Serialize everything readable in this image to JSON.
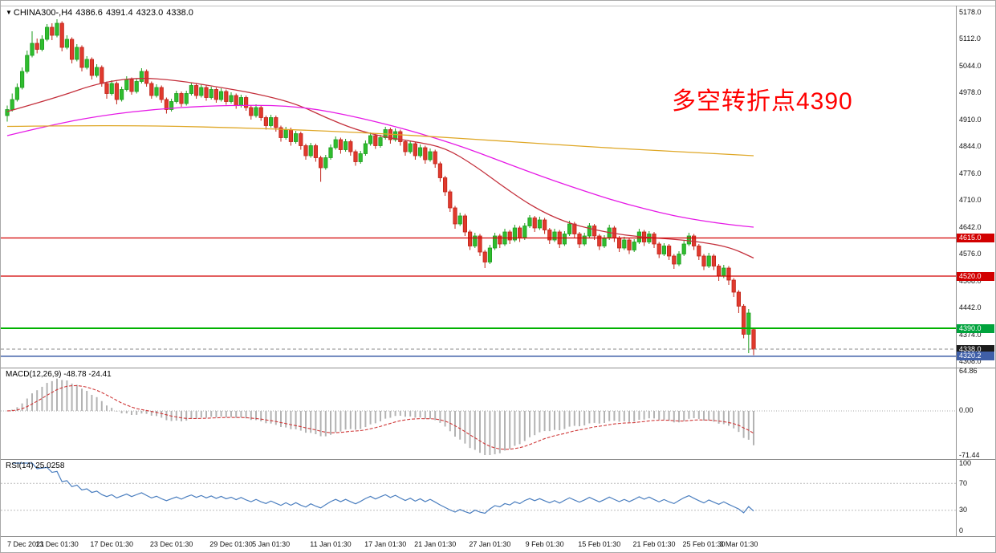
{
  "title": {
    "icon": "▼",
    "symbol": "CHINA300-,H4",
    "open": "4386.6",
    "high": "4391.4",
    "low": "4323.0",
    "close": "4338.0"
  },
  "annotation": {
    "text": "多空转折点4390",
    "color": "#ff0000"
  },
  "macd_panel": {
    "label": "MACD(12,26,9) -48.78 -24.41",
    "ticks": [
      {
        "v": 64.86,
        "t": "64.86"
      },
      {
        "v": 0,
        "t": "0.00"
      },
      {
        "v": -71.44,
        "t": "-71.44"
      }
    ],
    "range": {
      "min": -71.44,
      "max": 64.86
    }
  },
  "rsi_panel": {
    "label": "RSI(14) 25.0258",
    "ticks": [
      {
        "v": 100,
        "t": "100"
      },
      {
        "v": 70,
        "t": "70"
      },
      {
        "v": 30,
        "t": "30"
      },
      {
        "v": 0,
        "t": "0"
      }
    ],
    "levels": [
      70,
      30
    ],
    "range": {
      "min": 0,
      "max": 100
    }
  },
  "price_axis": {
    "ticks": [
      {
        "v": 5178,
        "t": "5178.0"
      },
      {
        "v": 5112,
        "t": "5112.0"
      },
      {
        "v": 5044,
        "t": "5044.0"
      },
      {
        "v": 4978,
        "t": "4978.0"
      },
      {
        "v": 4910,
        "t": "4910.0"
      },
      {
        "v": 4844,
        "t": "4844.0"
      },
      {
        "v": 4776,
        "t": "4776.0"
      },
      {
        "v": 4710,
        "t": "4710.0"
      },
      {
        "v": 4642,
        "t": "4642.0"
      },
      {
        "v": 4576,
        "t": "4576.0"
      },
      {
        "v": 4508,
        "t": "4508.0"
      },
      {
        "v": 4442,
        "t": "4442.0"
      },
      {
        "v": 4374,
        "t": "4374.0"
      },
      {
        "v": 4308,
        "t": "4308.0"
      }
    ],
    "badges": [
      {
        "v": 4615,
        "t": "4615.0",
        "bg": "#d20000"
      },
      {
        "v": 4520,
        "t": "4520.0",
        "bg": "#d20000"
      },
      {
        "v": 4390,
        "t": "4390.0",
        "bg": "#00a33c"
      },
      {
        "v": 4338,
        "t": "4338.0",
        "bg": "#1b1b1b"
      },
      {
        "v": 4320.2,
        "t": "4320.2",
        "bg": "#3f5fa8"
      }
    ]
  },
  "time_axis": [
    {
      "t": "7 Dec 2021",
      "bar": 0
    },
    {
      "t": "13 Dec 01:30",
      "bar": 10
    },
    {
      "t": "17 Dec 01:30",
      "bar": 21
    },
    {
      "t": "23 Dec 01:30",
      "bar": 33
    },
    {
      "t": "29 Dec 01:30",
      "bar": 45
    },
    {
      "t": "5 Jan 01:30",
      "bar": 53
    },
    {
      "t": "11 Jan 01:30",
      "bar": 65
    },
    {
      "t": "17 Jan 01:30",
      "bar": 76
    },
    {
      "t": "21 Jan 01:30",
      "bar": 86
    },
    {
      "t": "27 Jan 01:30",
      "bar": 97
    },
    {
      "t": "9 Feb 01:30",
      "bar": 108
    },
    {
      "t": "15 Feb 01:30",
      "bar": 119
    },
    {
      "t": "21 Feb 01:30",
      "bar": 130
    },
    {
      "t": "25 Feb 01:30",
      "bar": 140
    },
    {
      "t": "3 Mar 01:30",
      "bar": 147
    }
  ],
  "colors": {
    "up": "#1f9e1f",
    "up_fill": "#2fbd2f",
    "down": "#c02318",
    "down_fill": "#e03a2e",
    "ma_fast": "#c4303c",
    "ma_mid": "#e61ae6",
    "ma_slow": "#dfa726",
    "macd_hist": "#b3b3b3",
    "macd_signal": "#cf3838",
    "rsi_line": "#4a7ebf",
    "divider": "#8f8f8f",
    "annotation": "#ff0000"
  },
  "chart_data": {
    "type": "candlestick",
    "symbol": "CHINA300-",
    "timeframe": "H4",
    "current_bar": {
      "open": 4386.6,
      "high": 4391.4,
      "low": 4323.0,
      "close": 4338.0
    },
    "y_range": {
      "min": 4308,
      "max": 5178
    },
    "candles": [
      [
        4920,
        4945,
        4905,
        4935
      ],
      [
        4935,
        4975,
        4930,
        4960
      ],
      [
        4960,
        5000,
        4955,
        4990
      ],
      [
        4990,
        5040,
        4985,
        5030
      ],
      [
        5030,
        5082,
        5025,
        5070
      ],
      [
        5070,
        5130,
        5065,
        5100
      ],
      [
        5100,
        5112,
        5075,
        5085
      ],
      [
        5085,
        5120,
        5080,
        5110
      ],
      [
        5110,
        5148,
        5105,
        5140
      ],
      [
        5140,
        5150,
        5108,
        5120
      ],
      [
        5120,
        5160,
        5115,
        5150
      ],
      [
        5150,
        5155,
        5080,
        5090
      ],
      [
        5090,
        5120,
        5085,
        5110
      ],
      [
        5110,
        5115,
        5050,
        5060
      ],
      [
        5060,
        5098,
        5055,
        5090
      ],
      [
        5090,
        5095,
        5030,
        5040
      ],
      [
        5040,
        5068,
        5035,
        5060
      ],
      [
        5060,
        5065,
        5010,
        5020
      ],
      [
        5020,
        5048,
        5015,
        5040
      ],
      [
        5040,
        5045,
        4992,
        5000
      ],
      [
        5000,
        5005,
        4962,
        4975
      ],
      [
        4975,
        5008,
        4970,
        5000
      ],
      [
        5000,
        5005,
        4948,
        4960
      ],
      [
        4960,
        4992,
        4955,
        4985
      ],
      [
        4985,
        5018,
        4980,
        5010
      ],
      [
        5010,
        5015,
        4972,
        4980
      ],
      [
        4980,
        5012,
        4975,
        5005
      ],
      [
        5005,
        5038,
        5000,
        5030
      ],
      [
        5030,
        5035,
        4992,
        5000
      ],
      [
        5000,
        5005,
        4962,
        4970
      ],
      [
        4970,
        4998,
        4965,
        4990
      ],
      [
        4990,
        4995,
        4952,
        4960
      ],
      [
        4960,
        4965,
        4925,
        4935
      ],
      [
        4935,
        4962,
        4930,
        4955
      ],
      [
        4955,
        4982,
        4950,
        4975
      ],
      [
        4975,
        4980,
        4942,
        4950
      ],
      [
        4950,
        4982,
        4945,
        4975
      ],
      [
        4975,
        5002,
        4970,
        4995
      ],
      [
        4995,
        5000,
        4962,
        4970
      ],
      [
        4970,
        4998,
        4965,
        4990
      ],
      [
        4990,
        4995,
        4957,
        4965
      ],
      [
        4965,
        4992,
        4960,
        4985
      ],
      [
        4985,
        4990,
        4952,
        4960
      ],
      [
        4960,
        4988,
        4955,
        4980
      ],
      [
        4980,
        4985,
        4947,
        4955
      ],
      [
        4955,
        4978,
        4950,
        4970
      ],
      [
        4970,
        4975,
        4937,
        4945
      ],
      [
        4945,
        4972,
        4940,
        4965
      ],
      [
        4965,
        4970,
        4932,
        4940
      ],
      [
        4940,
        4945,
        4910,
        4920
      ],
      [
        4920,
        4948,
        4915,
        4940
      ],
      [
        4940,
        4945,
        4907,
        4915
      ],
      [
        4915,
        4920,
        4885,
        4895
      ],
      [
        4895,
        4922,
        4890,
        4915
      ],
      [
        4915,
        4920,
        4880,
        4890
      ],
      [
        4890,
        4895,
        4855,
        4865
      ],
      [
        4865,
        4892,
        4860,
        4885
      ],
      [
        4885,
        4890,
        4845,
        4855
      ],
      [
        4855,
        4882,
        4850,
        4875
      ],
      [
        4875,
        4880,
        4835,
        4845
      ],
      [
        4845,
        4850,
        4810,
        4820
      ],
      [
        4820,
        4852,
        4815,
        4845
      ],
      [
        4845,
        4850,
        4805,
        4815
      ],
      [
        4815,
        4820,
        4755,
        4790
      ],
      [
        4790,
        4822,
        4785,
        4815
      ],
      [
        4815,
        4848,
        4810,
        4840
      ],
      [
        4840,
        4868,
        4835,
        4860
      ],
      [
        4860,
        4865,
        4825,
        4835
      ],
      [
        4835,
        4862,
        4830,
        4855
      ],
      [
        4855,
        4860,
        4820,
        4830
      ],
      [
        4830,
        4835,
        4795,
        4805
      ],
      [
        4805,
        4832,
        4800,
        4825
      ],
      [
        4825,
        4858,
        4820,
        4850
      ],
      [
        4850,
        4878,
        4845,
        4870
      ],
      [
        4870,
        4875,
        4837,
        4845
      ],
      [
        4845,
        4872,
        4840,
        4865
      ],
      [
        4865,
        4892,
        4860,
        4885
      ],
      [
        4885,
        4890,
        4850,
        4860
      ],
      [
        4860,
        4888,
        4855,
        4880
      ],
      [
        4880,
        4885,
        4845,
        4855
      ],
      [
        4855,
        4860,
        4820,
        4830
      ],
      [
        4830,
        4858,
        4825,
        4850
      ],
      [
        4850,
        4855,
        4810,
        4820
      ],
      [
        4820,
        4848,
        4815,
        4840
      ],
      [
        4840,
        4845,
        4800,
        4810
      ],
      [
        4810,
        4838,
        4805,
        4830
      ],
      [
        4830,
        4835,
        4790,
        4800
      ],
      [
        4800,
        4805,
        4755,
        4765
      ],
      [
        4765,
        4770,
        4720,
        4730
      ],
      [
        4730,
        4735,
        4680,
        4690
      ],
      [
        4690,
        4695,
        4638,
        4650
      ],
      [
        4650,
        4678,
        4645,
        4670
      ],
      [
        4670,
        4675,
        4620,
        4630
      ],
      [
        4630,
        4635,
        4585,
        4595
      ],
      [
        4595,
        4628,
        4590,
        4620
      ],
      [
        4620,
        4625,
        4570,
        4580
      ],
      [
        4580,
        4585,
        4540,
        4555
      ],
      [
        4555,
        4598,
        4550,
        4590
      ],
      [
        4590,
        4628,
        4585,
        4620
      ],
      [
        4620,
        4625,
        4590,
        4600
      ],
      [
        4600,
        4638,
        4595,
        4630
      ],
      [
        4630,
        4635,
        4600,
        4610
      ],
      [
        4610,
        4648,
        4605,
        4640
      ],
      [
        4640,
        4645,
        4605,
        4615
      ],
      [
        4615,
        4652,
        4610,
        4645
      ],
      [
        4645,
        4672,
        4640,
        4665
      ],
      [
        4665,
        4670,
        4630,
        4640
      ],
      [
        4640,
        4668,
        4635,
        4660
      ],
      [
        4660,
        4665,
        4625,
        4635
      ],
      [
        4635,
        4640,
        4600,
        4610
      ],
      [
        4610,
        4638,
        4605,
        4630
      ],
      [
        4630,
        4635,
        4590,
        4600
      ],
      [
        4600,
        4632,
        4595,
        4625
      ],
      [
        4625,
        4658,
        4620,
        4650
      ],
      [
        4650,
        4655,
        4615,
        4625
      ],
      [
        4625,
        4630,
        4590,
        4600
      ],
      [
        4600,
        4628,
        4595,
        4620
      ],
      [
        4620,
        4652,
        4615,
        4645
      ],
      [
        4645,
        4650,
        4610,
        4620
      ],
      [
        4620,
        4625,
        4585,
        4595
      ],
      [
        4595,
        4622,
        4590,
        4615
      ],
      [
        4615,
        4648,
        4610,
        4640
      ],
      [
        4640,
        4645,
        4605,
        4615
      ],
      [
        4615,
        4620,
        4580,
        4590
      ],
      [
        4590,
        4618,
        4585,
        4610
      ],
      [
        4610,
        4615,
        4575,
        4585
      ],
      [
        4585,
        4612,
        4580,
        4605
      ],
      [
        4605,
        4638,
        4600,
        4630
      ],
      [
        4630,
        4635,
        4595,
        4605
      ],
      [
        4605,
        4632,
        4600,
        4625
      ],
      [
        4625,
        4630,
        4590,
        4600
      ],
      [
        4600,
        4605,
        4565,
        4575
      ],
      [
        4575,
        4602,
        4570,
        4595
      ],
      [
        4595,
        4600,
        4560,
        4570
      ],
      [
        4570,
        4575,
        4538,
        4550
      ],
      [
        4550,
        4582,
        4545,
        4575
      ],
      [
        4575,
        4608,
        4570,
        4600
      ],
      [
        4600,
        4628,
        4595,
        4620
      ],
      [
        4620,
        4625,
        4585,
        4595
      ],
      [
        4595,
        4600,
        4560,
        4570
      ],
      [
        4570,
        4575,
        4535,
        4545
      ],
      [
        4545,
        4578,
        4540,
        4570
      ],
      [
        4570,
        4575,
        4535,
        4545
      ],
      [
        4545,
        4550,
        4508,
        4520
      ],
      [
        4520,
        4548,
        4515,
        4540
      ],
      [
        4540,
        4545,
        4498,
        4510
      ],
      [
        4510,
        4515,
        4468,
        4480
      ],
      [
        4480,
        4485,
        4428,
        4445
      ],
      [
        4445,
        4450,
        4365,
        4375
      ],
      [
        4375,
        4438,
        4328,
        4428
      ],
      [
        4386.6,
        4391.4,
        4323,
        4338
      ]
    ],
    "moving_averages": [
      {
        "name": "fast",
        "color": "#c4303c",
        "points": [
          [
            0,
            4930
          ],
          [
            10,
            4965
          ],
          [
            18,
            5000
          ],
          [
            26,
            5015
          ],
          [
            34,
            5008
          ],
          [
            42,
            4992
          ],
          [
            50,
            4975
          ],
          [
            58,
            4950
          ],
          [
            64,
            4915
          ],
          [
            70,
            4885
          ],
          [
            76,
            4866
          ],
          [
            82,
            4855
          ],
          [
            88,
            4840
          ],
          [
            94,
            4795
          ],
          [
            100,
            4740
          ],
          [
            106,
            4690
          ],
          [
            112,
            4655
          ],
          [
            118,
            4635
          ],
          [
            124,
            4622
          ],
          [
            130,
            4615
          ],
          [
            136,
            4610
          ],
          [
            142,
            4600
          ],
          [
            146,
            4588
          ],
          [
            150,
            4565
          ]
        ]
      },
      {
        "name": "mid",
        "color": "#e61ae6",
        "points": [
          [
            0,
            4870
          ],
          [
            10,
            4900
          ],
          [
            20,
            4922
          ],
          [
            30,
            4936
          ],
          [
            40,
            4944
          ],
          [
            50,
            4946
          ],
          [
            56,
            4944
          ],
          [
            62,
            4936
          ],
          [
            68,
            4922
          ],
          [
            74,
            4905
          ],
          [
            80,
            4886
          ],
          [
            86,
            4864
          ],
          [
            92,
            4840
          ],
          [
            98,
            4812
          ],
          [
            104,
            4784
          ],
          [
            110,
            4757
          ],
          [
            116,
            4732
          ],
          [
            122,
            4708
          ],
          [
            128,
            4688
          ],
          [
            134,
            4670
          ],
          [
            140,
            4657
          ],
          [
            146,
            4647
          ],
          [
            150,
            4642
          ]
        ]
      },
      {
        "name": "slow",
        "color": "#dfa726",
        "points": [
          [
            0,
            4893
          ],
          [
            20,
            4896
          ],
          [
            40,
            4892
          ],
          [
            60,
            4884
          ],
          [
            80,
            4872
          ],
          [
            100,
            4856
          ],
          [
            120,
            4840
          ],
          [
            135,
            4830
          ],
          [
            150,
            4820
          ]
        ]
      }
    ],
    "hlines": [
      {
        "price": 4615.0,
        "color": "#d20000",
        "width": 1.2,
        "style": "solid",
        "label": "4615.0"
      },
      {
        "price": 4520.0,
        "color": "#d20000",
        "width": 1.2,
        "style": "solid",
        "label": "4520.0"
      },
      {
        "price": 4390.0,
        "color": "#00b200",
        "width": 2,
        "style": "solid",
        "label": "4390.0"
      },
      {
        "price": 4320.2,
        "color": "#3f5fa8",
        "width": 1.5,
        "style": "solid",
        "label": "4320.2"
      },
      {
        "price": 4338.0,
        "color": "#888888",
        "width": 1,
        "style": "dashed",
        "label": "4338.0"
      }
    ],
    "macd": {
      "fast": 12,
      "slow": 26,
      "signal": 9,
      "main_value": -48.78,
      "signal_value": -24.41
    },
    "rsi": {
      "period": 14,
      "value": 25.0258
    }
  }
}
